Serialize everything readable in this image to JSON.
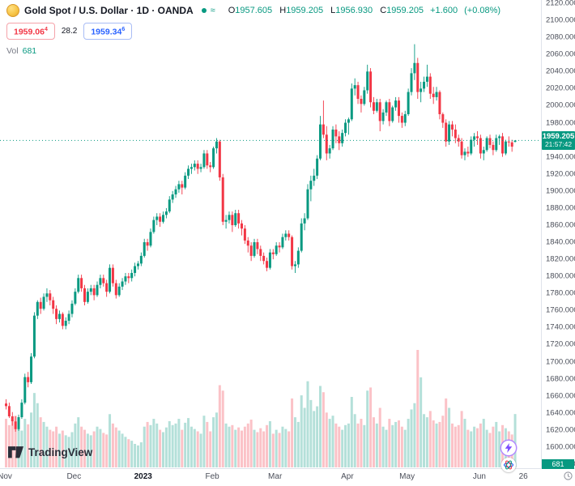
{
  "header": {
    "symbol_title": "Gold Spot / U.S. Dollar · 1D · OANDA",
    "ohlc": {
      "o_key": "O",
      "o_val": "1957.605",
      "h_key": "H",
      "h_val": "1959.205",
      "l_key": "L",
      "l_val": "1956.930",
      "c_key": "C",
      "c_val": "1959.205",
      "change": "+1.600",
      "change_pct": "(+0.08%)"
    },
    "sell_price": "1959.06",
    "sell_sup": "4",
    "spread": "28.2",
    "buy_price": "1959.34",
    "buy_sup": "6",
    "vol_label": "Vol",
    "vol_value": "681"
  },
  "price_tag": {
    "price": "1959.205",
    "countdown": "21:57:42"
  },
  "volume_tag": "681",
  "footer": {
    "logo_text": "TradingView"
  },
  "colors": {
    "up": "#089981",
    "down": "#f23645",
    "vol_up": "rgba(8,153,129,0.30)",
    "vol_down": "rgba(242,54,69,0.30)",
    "sell": "#f23645",
    "buy": "#2962ff",
    "tag_bg": "#089981"
  },
  "chart_data": {
    "type": "candlestick+volume",
    "title": "Gold Spot / U.S. Dollar, 1D, OANDA",
    "legend": [
      "price candles (daily)",
      "volume"
    ],
    "last_price": 1959.205,
    "y_axis": {
      "min": 1580,
      "max": 2120,
      "step": 20,
      "ticks": [
        2120,
        2100,
        2080,
        2060,
        2040,
        2020,
        2000,
        1980,
        1960,
        1940,
        1920,
        1900,
        1880,
        1860,
        1840,
        1820,
        1800,
        1780,
        1760,
        1740,
        1720,
        1700,
        1680,
        1660,
        1640,
        1620,
        1600,
        1580
      ]
    },
    "x_axis": {
      "ticks": [
        {
          "label": "Nov",
          "idx": 0,
          "bold": false
        },
        {
          "label": "Dec",
          "idx": 22,
          "bold": false
        },
        {
          "label": "2023",
          "idx": 44,
          "bold": true
        },
        {
          "label": "Feb",
          "idx": 66,
          "bold": false
        },
        {
          "label": "Mar",
          "idx": 86,
          "bold": false
        },
        {
          "label": "Apr",
          "idx": 109,
          "bold": false
        },
        {
          "label": "May",
          "idx": 128,
          "bold": false
        },
        {
          "label": "Jun",
          "idx": 151,
          "bold": false
        },
        {
          "label": "26",
          "idx": 165,
          "bold": false
        }
      ]
    },
    "candles": [
      [
        1651,
        1656,
        1644,
        1648
      ],
      [
        1648,
        1652,
        1634,
        1636
      ],
      [
        1636,
        1641,
        1625,
        1630
      ],
      [
        1630,
        1636,
        1618,
        1621
      ],
      [
        1621,
        1638,
        1619,
        1635
      ],
      [
        1635,
        1656,
        1633,
        1652
      ],
      [
        1652,
        1686,
        1650,
        1682
      ],
      [
        1682,
        1688,
        1670,
        1676
      ],
      [
        1676,
        1710,
        1674,
        1706
      ],
      [
        1706,
        1758,
        1704,
        1754
      ],
      [
        1754,
        1772,
        1750,
        1770
      ],
      [
        1770,
        1775,
        1756,
        1762
      ],
      [
        1762,
        1780,
        1760,
        1776
      ],
      [
        1776,
        1786,
        1770,
        1780
      ],
      [
        1780,
        1784,
        1766,
        1772
      ],
      [
        1772,
        1776,
        1756,
        1762
      ],
      [
        1762,
        1766,
        1744,
        1750
      ],
      [
        1750,
        1760,
        1746,
        1756
      ],
      [
        1756,
        1758,
        1738,
        1742
      ],
      [
        1742,
        1752,
        1738,
        1748
      ],
      [
        1748,
        1760,
        1744,
        1756
      ],
      [
        1756,
        1772,
        1752,
        1768
      ],
      [
        1768,
        1786,
        1766,
        1782
      ],
      [
        1782,
        1802,
        1780,
        1798
      ],
      [
        1798,
        1802,
        1782,
        1786
      ],
      [
        1786,
        1790,
        1766,
        1770
      ],
      [
        1770,
        1786,
        1768,
        1782
      ],
      [
        1782,
        1790,
        1778,
        1786
      ],
      [
        1786,
        1790,
        1772,
        1778
      ],
      [
        1778,
        1794,
        1776,
        1790
      ],
      [
        1790,
        1802,
        1786,
        1798
      ],
      [
        1798,
        1802,
        1788,
        1792
      ],
      [
        1792,
        1796,
        1776,
        1782
      ],
      [
        1782,
        1814,
        1780,
        1810
      ],
      [
        1810,
        1814,
        1788,
        1792
      ],
      [
        1792,
        1796,
        1774,
        1778
      ],
      [
        1778,
        1792,
        1776,
        1788
      ],
      [
        1788,
        1798,
        1784,
        1794
      ],
      [
        1794,
        1804,
        1790,
        1800
      ],
      [
        1800,
        1804,
        1792,
        1798
      ],
      [
        1798,
        1808,
        1794,
        1804
      ],
      [
        1804,
        1816,
        1800,
        1812
      ],
      [
        1812,
        1818,
        1808,
        1815
      ],
      [
        1815,
        1828,
        1812,
        1824
      ],
      [
        1824,
        1844,
        1822,
        1840
      ],
      [
        1840,
        1844,
        1830,
        1836
      ],
      [
        1836,
        1856,
        1834,
        1852
      ],
      [
        1852,
        1870,
        1850,
        1866
      ],
      [
        1866,
        1874,
        1860,
        1870
      ],
      [
        1870,
        1874,
        1858,
        1864
      ],
      [
        1864,
        1876,
        1862,
        1872
      ],
      [
        1872,
        1880,
        1868,
        1876
      ],
      [
        1876,
        1894,
        1874,
        1890
      ],
      [
        1890,
        1900,
        1886,
        1896
      ],
      [
        1896,
        1906,
        1892,
        1902
      ],
      [
        1902,
        1912,
        1898,
        1908
      ],
      [
        1908,
        1912,
        1896,
        1904
      ],
      [
        1904,
        1922,
        1902,
        1918
      ],
      [
        1918,
        1930,
        1914,
        1926
      ],
      [
        1926,
        1932,
        1920,
        1928
      ],
      [
        1928,
        1936,
        1924,
        1932
      ],
      [
        1932,
        1936,
        1920,
        1926
      ],
      [
        1926,
        1932,
        1922,
        1928
      ],
      [
        1928,
        1948,
        1926,
        1944
      ],
      [
        1944,
        1948,
        1926,
        1930
      ],
      [
        1930,
        1934,
        1922,
        1928
      ],
      [
        1928,
        1952,
        1926,
        1950
      ],
      [
        1950,
        1962,
        1944,
        1958
      ],
      [
        1958,
        1960,
        1912,
        1916
      ],
      [
        1916,
        1920,
        1860,
        1864
      ],
      [
        1864,
        1872,
        1856,
        1866
      ],
      [
        1866,
        1876,
        1862,
        1872
      ],
      [
        1872,
        1876,
        1852,
        1860
      ],
      [
        1860,
        1878,
        1858,
        1874
      ],
      [
        1874,
        1878,
        1856,
        1862
      ],
      [
        1862,
        1866,
        1848,
        1856
      ],
      [
        1856,
        1860,
        1838,
        1842
      ],
      [
        1842,
        1846,
        1828,
        1836
      ],
      [
        1836,
        1840,
        1818,
        1824
      ],
      [
        1824,
        1844,
        1822,
        1840
      ],
      [
        1840,
        1844,
        1826,
        1832
      ],
      [
        1832,
        1836,
        1818,
        1824
      ],
      [
        1824,
        1828,
        1814,
        1818
      ],
      [
        1818,
        1822,
        1806,
        1810
      ],
      [
        1810,
        1832,
        1808,
        1828
      ],
      [
        1828,
        1832,
        1820,
        1826
      ],
      [
        1826,
        1840,
        1824,
        1836
      ],
      [
        1836,
        1840,
        1828,
        1834
      ],
      [
        1834,
        1850,
        1832,
        1846
      ],
      [
        1846,
        1854,
        1842,
        1850
      ],
      [
        1850,
        1854,
        1842,
        1846
      ],
      [
        1846,
        1848,
        1808,
        1812
      ],
      [
        1812,
        1818,
        1804,
        1814
      ],
      [
        1814,
        1834,
        1810,
        1830
      ],
      [
        1830,
        1868,
        1828,
        1862
      ],
      [
        1862,
        1874,
        1854,
        1868
      ],
      [
        1868,
        1908,
        1866,
        1902
      ],
      [
        1902,
        1918,
        1888,
        1912
      ],
      [
        1912,
        1926,
        1906,
        1918
      ],
      [
        1918,
        1942,
        1914,
        1938
      ],
      [
        1938,
        1988,
        1936,
        1978
      ],
      [
        1978,
        2006,
        1962,
        1966
      ],
      [
        1966,
        1976,
        1936,
        1944
      ],
      [
        1944,
        1954,
        1938,
        1950
      ],
      [
        1950,
        1976,
        1948,
        1972
      ],
      [
        1972,
        1978,
        1956,
        1964
      ],
      [
        1964,
        1970,
        1948,
        1956
      ],
      [
        1956,
        1972,
        1952,
        1968
      ],
      [
        1968,
        1984,
        1964,
        1980
      ],
      [
        1980,
        1986,
        1966,
        1984
      ],
      [
        1984,
        2026,
        1982,
        2020
      ],
      [
        2020,
        2032,
        2012,
        2024
      ],
      [
        2024,
        2028,
        2002,
        2008
      ],
      [
        2008,
        2012,
        1992,
        2002
      ],
      [
        2002,
        2022,
        2000,
        2018
      ],
      [
        2018,
        2048,
        2014,
        2040
      ],
      [
        2040,
        2044,
        1998,
        2004
      ],
      [
        2004,
        2010,
        1990,
        1994
      ],
      [
        1994,
        2008,
        1992,
        2004
      ],
      [
        2004,
        2008,
        1970,
        1982
      ],
      [
        1982,
        1996,
        1978,
        1992
      ],
      [
        1992,
        2006,
        1988,
        2004
      ],
      [
        2004,
        2008,
        1976,
        1982
      ],
      [
        1982,
        2000,
        1980,
        1998
      ],
      [
        1998,
        2010,
        1994,
        2006
      ],
      [
        2006,
        2010,
        1980,
        1988
      ],
      [
        1988,
        1992,
        1974,
        1980
      ],
      [
        1980,
        1994,
        1976,
        1990
      ],
      [
        1990,
        2020,
        1988,
        2016
      ],
      [
        2016,
        2044,
        2012,
        2038
      ],
      [
        2038,
        2072,
        2030,
        2050
      ],
      [
        2050,
        2056,
        2008,
        2016
      ],
      [
        2016,
        2028,
        2004,
        2020
      ],
      [
        2020,
        2034,
        2016,
        2028
      ],
      [
        2028,
        2048,
        2022,
        2034
      ],
      [
        2034,
        2038,
        2008,
        2014
      ],
      [
        2014,
        2022,
        2002,
        2010
      ],
      [
        2010,
        2022,
        2006,
        2016
      ],
      [
        2016,
        2018,
        1984,
        1990
      ],
      [
        1990,
        1992,
        1974,
        1980
      ],
      [
        1980,
        1984,
        1952,
        1958
      ],
      [
        1958,
        1982,
        1954,
        1978
      ],
      [
        1978,
        1982,
        1964,
        1972
      ],
      [
        1972,
        1978,
        1956,
        1962
      ],
      [
        1962,
        1966,
        1952,
        1958
      ],
      [
        1958,
        1962,
        1938,
        1942
      ],
      [
        1942,
        1950,
        1936,
        1946
      ],
      [
        1946,
        1952,
        1940,
        1944
      ],
      [
        1944,
        1964,
        1942,
        1960
      ],
      [
        1960,
        1968,
        1952,
        1964
      ],
      [
        1964,
        1970,
        1954,
        1962
      ],
      [
        1962,
        1966,
        1938,
        1944
      ],
      [
        1944,
        1952,
        1936,
        1948
      ],
      [
        1948,
        1964,
        1946,
        1962
      ],
      [
        1962,
        1966,
        1950,
        1954
      ],
      [
        1954,
        1958,
        1942,
        1948
      ],
      [
        1948,
        1966,
        1946,
        1962
      ],
      [
        1962,
        1966,
        1954,
        1964
      ],
      [
        1964,
        1968,
        1940,
        1944
      ],
      [
        1944,
        1960,
        1942,
        1958
      ],
      [
        1958,
        1964,
        1952,
        1957
      ],
      [
        1957,
        1960,
        1946,
        1952
      ],
      [
        1957.605,
        1959.205,
        1956.93,
        1959.205
      ]
    ],
    "volumes": [
      620,
      540,
      580,
      660,
      500,
      470,
      620,
      550,
      700,
      950,
      820,
      640,
      580,
      520,
      480,
      460,
      520,
      430,
      470,
      410,
      390,
      450,
      560,
      640,
      520,
      480,
      430,
      410,
      460,
      520,
      490,
      440,
      420,
      680,
      560,
      510,
      470,
      430,
      390,
      360,
      340,
      300,
      280,
      320,
      520,
      580,
      540,
      620,
      560,
      480,
      450,
      510,
      590,
      540,
      560,
      620,
      480,
      570,
      630,
      520,
      490,
      460,
      430,
      660,
      580,
      460,
      640,
      700,
      1050,
      980,
      560,
      520,
      540,
      480,
      510,
      470,
      520,
      560,
      610,
      480,
      450,
      500,
      460,
      540,
      590,
      430,
      480,
      440,
      520,
      490,
      460,
      880,
      640,
      580,
      920,
      760,
      1100,
      860,
      720,
      780,
      1040,
      960,
      700,
      620,
      660,
      560,
      520,
      480,
      540,
      560,
      900,
      680,
      560,
      620,
      540,
      980,
      1020,
      640,
      560,
      760,
      520,
      480,
      620,
      540,
      580,
      600,
      520,
      480,
      620,
      740,
      820,
      1500,
      1150,
      680,
      640,
      720,
      600,
      560,
      580,
      660,
      880,
      760,
      560,
      520,
      540,
      720,
      620,
      480,
      460,
      520,
      500,
      560,
      620,
      480,
      440,
      520,
      580,
      460,
      540,
      500,
      460,
      420,
      681
    ]
  }
}
